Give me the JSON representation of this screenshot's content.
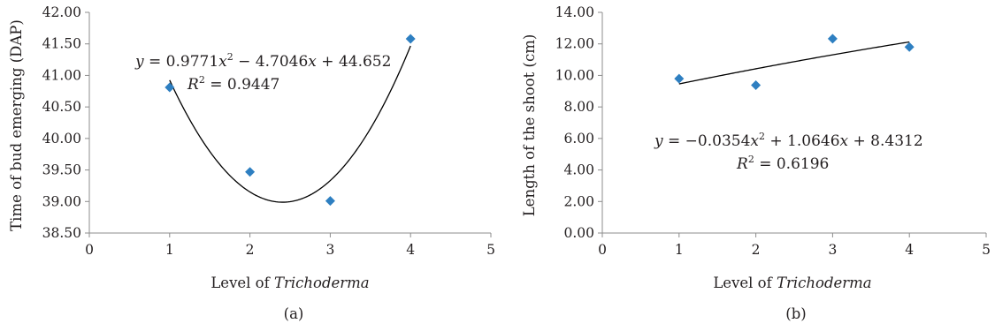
{
  "chart_data": [
    {
      "type": "scatter",
      "panel_label": "(a)",
      "xlabel_prefix": "Level of ",
      "xlabel_italic": "Trichoderma",
      "ylabel": "Time of bud emerging (DAP)",
      "x_ticks": [
        "0",
        "1",
        "2",
        "3",
        "4",
        "5"
      ],
      "y_ticks": [
        "38.50",
        "39.00",
        "39.50",
        "40.00",
        "40.50",
        "41.00",
        "41.50",
        "42.00"
      ],
      "xlim": [
        0,
        5
      ],
      "ylim": [
        38.5,
        42.0
      ],
      "points": [
        {
          "x": 1,
          "y": 40.81
        },
        {
          "x": 2,
          "y": 39.47
        },
        {
          "x": 3,
          "y": 39.01
        },
        {
          "x": 4,
          "y": 41.58
        }
      ],
      "trendline": {
        "type": "polynomial",
        "a": 0.9771,
        "b": -4.7046,
        "c": 44.652
      },
      "equation": {
        "y_var": "y",
        "eq1": " = 0.9771",
        "x1": "x",
        "pow": "2",
        "eq2": " − 4.7046",
        "x2": "x",
        "eq3": " + 44.652",
        "r_var": "R",
        "r_val": " = 0.9447"
      },
      "marker_color": "#2e7fc1",
      "grid": false
    },
    {
      "type": "scatter",
      "panel_label": "(b)",
      "xlabel_prefix": "Level of ",
      "xlabel_italic": "Trichoderma",
      "ylabel": "Length of the shoot (cm)",
      "x_ticks": [
        "0",
        "1",
        "2",
        "3",
        "4",
        "5"
      ],
      "y_ticks": [
        "0.00",
        "2.00",
        "4.00",
        "6.00",
        "8.00",
        "10.00",
        "12.00",
        "14.00"
      ],
      "xlim": [
        0,
        5
      ],
      "ylim": [
        0,
        14
      ],
      "points": [
        {
          "x": 1,
          "y": 9.79
        },
        {
          "x": 2,
          "y": 9.38
        },
        {
          "x": 3,
          "y": 12.33
        },
        {
          "x": 4,
          "y": 11.8
        }
      ],
      "trendline": {
        "type": "polynomial",
        "a": -0.0354,
        "b": 1.0646,
        "c": 8.4312
      },
      "equation": {
        "y_var": "y",
        "eq1": " = −0.0354",
        "x1": "x",
        "pow": "2",
        "eq2": " + 1.0646",
        "x2": "x",
        "eq3": " + 8.4312",
        "r_var": "R",
        "r_val": " = 0.6196"
      },
      "marker_color": "#2e7fc1",
      "grid": false
    }
  ]
}
